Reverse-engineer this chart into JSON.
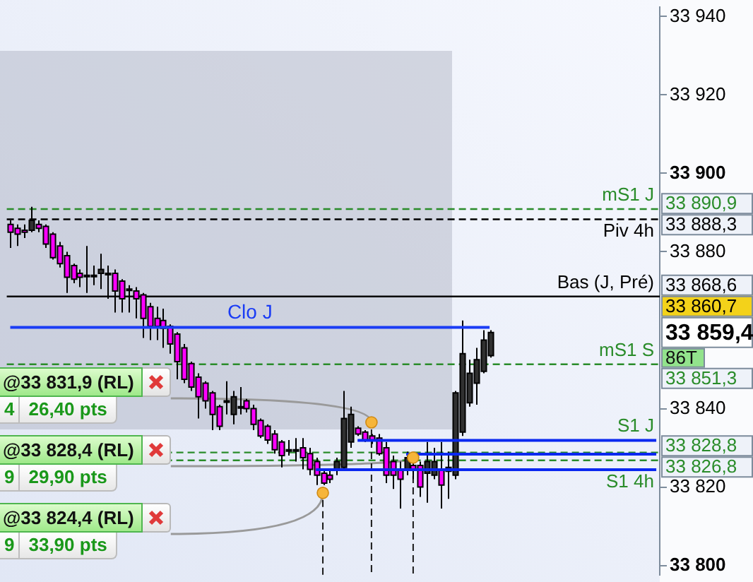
{
  "chart_data": {
    "type": "candlestick",
    "categories": [
      null,
      null,
      null,
      null,
      null,
      null,
      null,
      null,
      null,
      null,
      null,
      null,
      null,
      null,
      null,
      null,
      null,
      null,
      null,
      null,
      null,
      null,
      null,
      null,
      null,
      null,
      null,
      null,
      null,
      null,
      null,
      null,
      null,
      null,
      null,
      null,
      null,
      null,
      null,
      null,
      null,
      null,
      null,
      null,
      null,
      null,
      null,
      null,
      null,
      null,
      null,
      null,
      null,
      null,
      null,
      null,
      null,
      null,
      null,
      null,
      null,
      null,
      null,
      null,
      null,
      null,
      null,
      null,
      null,
      null,
      null,
      null,
      null,
      null,
      null,
      null,
      null,
      null,
      null,
      null,
      null,
      null,
      null,
      null,
      null,
      null,
      null,
      null,
      null,
      null,
      null,
      null,
      null,
      null
    ],
    "ohlc": [
      [
        33887,
        33888,
        33881,
        33885
      ],
      [
        33886,
        33887,
        33881.5,
        33884.5
      ],
      [
        33885.5,
        33887,
        33883.5,
        33885
      ],
      [
        33885.5,
        33891.5,
        33885,
        33888
      ],
      [
        33887,
        33888,
        33885,
        33886
      ],
      [
        33886.5,
        33887,
        33881,
        33882
      ],
      [
        33884.5,
        33885,
        33878,
        33878.5
      ],
      [
        33881.5,
        33882.5,
        33876,
        33877
      ],
      [
        33879,
        33880,
        33869.5,
        33873.5
      ],
      [
        33876.5,
        33877,
        33872,
        33873
      ],
      [
        33874.5,
        33875.5,
        33871,
        33873.5
      ],
      [
        33874,
        33881.5,
        33869.5,
        33874
      ],
      [
        33874,
        33876.5,
        33871.5,
        33874
      ],
      [
        33874.5,
        33879.5,
        33870.5,
        33875.5
      ],
      [
        33874.5,
        33876.5,
        33868,
        33874.5
      ],
      [
        33874.5,
        33875.5,
        33864.5,
        33870
      ],
      [
        33872.5,
        33873,
        33864.5,
        33868
      ],
      [
        33870.5,
        33871.5,
        33864.5,
        33870.5
      ],
      [
        33870,
        33871,
        33863,
        33868
      ],
      [
        33869,
        33869.5,
        33858,
        33863
      ],
      [
        33866,
        33867,
        33857.5,
        33861
      ],
      [
        33863,
        33866,
        33857.5,
        33861
      ],
      [
        33862.5,
        33865.5,
        33855.5,
        33860.5
      ],
      [
        33861,
        33861.5,
        33854,
        33856.5
      ],
      [
        33859,
        33859.5,
        33847.5,
        33852
      ],
      [
        33855.5,
        33856.5,
        33846.5,
        33847.5
      ],
      [
        33851.5,
        33852,
        33844.5,
        33845.5
      ],
      [
        33848,
        33849,
        33837.5,
        33843
      ],
      [
        33846.5,
        33847,
        33840,
        33842
      ],
      [
        33844,
        33844.5,
        33834.5,
        33838.5
      ],
      [
        33840.5,
        33841,
        33834.5,
        33835.5
      ],
      [
        33842,
        33847,
        33838.5,
        33842
      ],
      [
        33838.5,
        33844.5,
        33836,
        33843
      ],
      [
        33840.5,
        33845.5,
        33838.5,
        33840.5
      ],
      [
        33842,
        33842.5,
        33839,
        33840
      ],
      [
        33840,
        33841,
        33834.5,
        33836
      ],
      [
        33837,
        33837.5,
        33832.5,
        33833
      ],
      [
        33835.5,
        33836,
        33831,
        33832
      ],
      [
        33833.5,
        33834.5,
        33828.5,
        33829.5
      ],
      [
        33831.5,
        33832,
        33825,
        33828
      ],
      [
        33829.5,
        33832,
        33828,
        33829.5
      ],
      [
        33829.5,
        33832.5,
        33826.5,
        33829.5
      ],
      [
        33830,
        33832.5,
        33824.5,
        33827.5
      ],
      [
        33828.5,
        33830,
        33823,
        33824.5
      ],
      [
        33826.5,
        33827.5,
        33820.5,
        33823
      ],
      [
        33823.5,
        33824.5,
        33820.5,
        33821
      ],
      [
        33823,
        33824.5,
        33821,
        33822
      ],
      [
        33824.5,
        33827.5,
        33823,
        33826.5
      ],
      [
        33825,
        33844.5,
        33824.5,
        33837.5
      ],
      [
        33831.5,
        33840.5,
        33830,
        33838.5
      ],
      [
        33835,
        33835.5,
        33833,
        33833.5
      ],
      [
        33834,
        33834.5,
        33831.5,
        33832
      ],
      [
        33833,
        33833.5,
        33831,
        33832
      ],
      [
        33832.5,
        33833.5,
        33828,
        33828.5
      ],
      [
        33830,
        33831.5,
        33821,
        33823
      ],
      [
        33826.5,
        33828,
        33819.5,
        33823
      ],
      [
        33824.5,
        33826.5,
        33814.5,
        33822
      ],
      [
        33824.5,
        33829,
        33823,
        33827.5
      ],
      [
        33825.5,
        33826.5,
        33822,
        33824.5
      ],
      [
        33825.5,
        33826.5,
        33817.5,
        33820
      ],
      [
        33823.5,
        33831.5,
        33816,
        33826.5
      ],
      [
        33823,
        33830,
        33822,
        33826.5
      ],
      [
        33824.5,
        33831.5,
        33814.5,
        33820.5
      ],
      [
        33824,
        33829,
        33817,
        33825
      ],
      [
        33823,
        33844.5,
        33822,
        33844
      ],
      [
        33834,
        33862.5,
        33833,
        33854
      ],
      [
        33841.5,
        33852.5,
        33840.5,
        33849
      ],
      [
        33846.5,
        33855.5,
        33841,
        33852.5
      ],
      [
        33849.5,
        33860,
        33849,
        33857.5
      ],
      [
        33853.5,
        33860,
        33853,
        33859.4
      ],
      null,
      null,
      null,
      null,
      null,
      null,
      null,
      null,
      null,
      null,
      null,
      null,
      null,
      null,
      null,
      null,
      null,
      null,
      null,
      null,
      null,
      null,
      null,
      null
    ],
    "colors": [
      "#ff00ff",
      "#ff00ff",
      "#ff00ff",
      "#303030",
      "#ff00ff",
      "#ff00ff",
      "#ff00ff",
      "#ff00ff",
      "#ff00ff",
      "#ff00ff",
      "#ff00ff",
      "#303030",
      "#303030",
      "#303030",
      "#303030",
      "#ff00ff",
      "#ff00ff",
      "#303030",
      "#ff00ff",
      "#ff00ff",
      "#ff00ff",
      "#ff00ff",
      "#ff00ff",
      "#ff00ff",
      "#ff00ff",
      "#ff00ff",
      "#ff00ff",
      "#ff00ff",
      "#ff00ff",
      "#ff00ff",
      "#ff00ff",
      "#303030",
      "#303030",
      "#303030",
      "#ff00ff",
      "#ff00ff",
      "#ff00ff",
      "#ff00ff",
      "#ff00ff",
      "#ff00ff",
      "#303030",
      "#303030",
      "#ff00ff",
      "#ff00ff",
      "#ff00ff",
      "#ff00ff",
      "#ff00ff",
      "#303030",
      "#303030",
      "#303030",
      "#ff00ff",
      "#ff00ff",
      "#ff00ff",
      "#ff00ff",
      "#ff00ff",
      "#ff00ff",
      "#ff00ff",
      "#303030",
      "#ff00ff",
      "#ff00ff",
      "#303030",
      "#303030",
      "#ff00ff",
      "#303030",
      "#303030",
      "#303030",
      "#303030",
      "#303030",
      "#303030",
      "#303030",
      null,
      null,
      null,
      null,
      null,
      null,
      null,
      null,
      null,
      null,
      null,
      null,
      null,
      null,
      null,
      null,
      null,
      null,
      null,
      null,
      null,
      null,
      null,
      null
    ],
    "series": [
      {
        "type": "line",
        "name": "Clo J",
        "color": "#1a3cf5",
        "values": [
          33860.7,
          33860.7,
          33860.7,
          33860.7,
          33860.7,
          33860.7,
          33860.7,
          33860.7,
          33860.7,
          33860.7,
          33860.7,
          33860.7,
          33860.7,
          33860.7,
          33860.7,
          33860.7,
          33860.7,
          33860.7,
          33860.7,
          33860.7,
          33860.7,
          33860.7,
          33860.7,
          33860.7,
          33860.7,
          33860.7,
          33860.7,
          33860.7,
          33860.7,
          33860.7,
          33860.7,
          33860.7,
          33860.7,
          33860.7,
          33860.7,
          33860.7,
          33860.7,
          33860.7,
          33860.7,
          33860.7,
          33860.7,
          33860.7,
          33860.7,
          33860.7,
          33860.7,
          33860.7,
          33860.7,
          33860.7,
          33860.7,
          33860.7,
          33860.7,
          33860.7,
          33860.7,
          33860.7,
          33860.7,
          33860.7,
          33860.7,
          33860.7,
          33860.7,
          33860.7,
          33860.7,
          33860.7,
          33860.7,
          33860.7,
          33860.7,
          33860.7,
          33860.7,
          33860.7,
          33860.7,
          33860.7,
          null,
          null,
          null,
          null,
          null,
          null,
          null,
          null,
          null,
          null,
          null,
          null,
          null,
          null,
          null,
          null,
          null,
          null,
          null,
          null,
          null,
          null,
          null,
          null
        ]
      },
      {
        "type": "line",
        "color": "#0a28f0",
        "values": [
          null,
          null,
          null,
          null,
          null,
          null,
          null,
          null,
          null,
          null,
          null,
          null,
          null,
          null,
          null,
          null,
          null,
          null,
          null,
          null,
          null,
          null,
          null,
          null,
          null,
          null,
          null,
          null,
          null,
          null,
          null,
          null,
          null,
          null,
          null,
          null,
          null,
          null,
          null,
          null,
          null,
          null,
          null,
          null,
          null,
          null,
          null,
          null,
          null,
          null,
          33831.9,
          33831.9,
          33831.9,
          33831.9,
          33831.9,
          33831.9,
          33831.9,
          33831.9,
          33831.9,
          33831.9,
          33831.9,
          33831.9,
          33831.9,
          33831.9,
          33831.9,
          33831.9,
          33831.9,
          33831.9,
          33831.9,
          33831.9,
          33831.9,
          33831.9,
          33831.9,
          33831.9,
          33831.9,
          33831.9,
          33831.9,
          33831.9,
          33831.9,
          33831.9,
          33831.9,
          33831.9,
          33831.9,
          33831.9,
          33831.9,
          33831.9,
          33831.9,
          33831.9,
          33831.9,
          33831.9,
          33831.9,
          33831.9,
          33831.9,
          33831.9
        ]
      },
      {
        "type": "line",
        "color": "#0a28f0",
        "values": [
          null,
          null,
          null,
          null,
          null,
          null,
          null,
          null,
          null,
          null,
          null,
          null,
          null,
          null,
          null,
          null,
          null,
          null,
          null,
          null,
          null,
          null,
          null,
          null,
          null,
          null,
          null,
          null,
          null,
          null,
          null,
          null,
          null,
          null,
          null,
          null,
          null,
          null,
          null,
          null,
          null,
          null,
          null,
          null,
          null,
          null,
          null,
          null,
          null,
          null,
          null,
          null,
          null,
          null,
          null,
          null,
          null,
          33828.4,
          33828.4,
          33828.4,
          33828.4,
          33828.4,
          33828.4,
          33828.4,
          33828.4,
          33828.4,
          33828.4,
          33828.4,
          33828.4,
          33828.4,
          33828.4,
          33828.4,
          33828.4,
          33828.4,
          33828.4,
          33828.4,
          33828.4,
          33828.4,
          33828.4,
          33828.4,
          33828.4,
          33828.4,
          33828.4,
          33828.4,
          33828.4,
          33828.4,
          33828.4,
          33828.4,
          33828.4,
          33828.4,
          33828.4,
          33828.4,
          33828.4,
          33828.4
        ]
      },
      {
        "type": "line",
        "color": "#0a28f0",
        "values": [
          null,
          null,
          null,
          null,
          null,
          null,
          null,
          null,
          null,
          null,
          null,
          null,
          null,
          null,
          null,
          null,
          null,
          null,
          null,
          null,
          null,
          null,
          null,
          null,
          null,
          null,
          null,
          null,
          null,
          null,
          null,
          null,
          null,
          null,
          null,
          null,
          null,
          null,
          null,
          null,
          null,
          null,
          null,
          null,
          33824.4,
          33824.4,
          33824.4,
          33824.4,
          33824.4,
          33824.4,
          33824.4,
          33824.4,
          33824.4,
          33824.4,
          33824.4,
          33824.4,
          33824.4,
          33824.4,
          33824.4,
          33824.4,
          33824.4,
          33824.4,
          33824.4,
          33824.4,
          33824.4,
          33824.4,
          33824.4,
          33824.4,
          33824.4,
          33824.4,
          33824.4,
          33824.4,
          33824.4,
          33824.4,
          33824.4,
          33824.4,
          33824.4,
          33824.4,
          33824.4,
          33824.4,
          33824.4,
          33824.4,
          33824.4,
          33824.4,
          33824.4,
          33824.4,
          33824.4,
          33824.4,
          33824.4,
          33824.4,
          33824.4,
          33824.4,
          33824.4,
          33824.4
        ]
      },
      {
        "type": "lollipop",
        "color": "#f6b53a",
        "line_style": "dashed",
        "values": [
          null,
          null,
          null,
          null,
          null,
          null,
          null,
          null,
          null,
          null,
          null,
          null,
          null,
          null,
          null,
          null,
          null,
          null,
          null,
          null,
          null,
          null,
          null,
          null,
          null,
          null,
          null,
          null,
          null,
          null,
          null,
          null,
          null,
          null,
          null,
          null,
          null,
          null,
          null,
          null,
          null,
          null,
          null,
          null,
          null,
          33818.5,
          null,
          null,
          null,
          null,
          null,
          null,
          33836.5,
          null,
          null,
          null,
          null,
          null,
          33827.5,
          null,
          null,
          null,
          null,
          null,
          null,
          null,
          null,
          null,
          null,
          null,
          null,
          null,
          null,
          null,
          null,
          null,
          null,
          null,
          null,
          null,
          null,
          null,
          null,
          null,
          null,
          null,
          null,
          null,
          null,
          null,
          null,
          null,
          null,
          null
        ]
      }
    ],
    "ref_lines": [
      {
        "axis": "y",
        "value": 33890.9,
        "label": "mS1 J",
        "color": "#2a8c2a",
        "line_style": "dashed"
      },
      {
        "axis": "y",
        "value": 33888.3,
        "label": "Piv 4h",
        "color": "#000000",
        "line_style": "dashed"
      },
      {
        "axis": "y",
        "value": 33868.6,
        "label": "Bas (J, Pré)",
        "color": "#000000"
      },
      {
        "axis": "y",
        "value": 33851.3,
        "label": "mS1 S",
        "color": "#2a8c2a",
        "line_style": "dashed"
      },
      {
        "axis": "y",
        "value": 33828.8,
        "label": "S1 J",
        "color": "#2a8c2a",
        "line_style": "dashed"
      },
      {
        "axis": "y",
        "value": 33826.8,
        "label": "S1 4h",
        "color": "#2a8c2a",
        "line_style": "dashed"
      }
    ],
    "annotations": [
      "33 890,9",
      "33 888,3",
      "33 868,6",
      "33 860,7",
      "33 859,4",
      "33 851,3",
      "33 828,8",
      "33 826,8",
      "86T",
      "@33 831,9 (RL)",
      "4",
      "26,40 pts",
      "@33 828,4 (RL)",
      "9",
      "29,90 pts",
      "@33 824,4 (RL)",
      "9",
      "33,90 pts"
    ],
    "ylim": [
      33797.5,
      33942.5
    ],
    "yticks": [
      {
        "value": 33800,
        "label": "33 800"
      },
      {
        "value": 33820,
        "label": "33 820"
      },
      {
        "value": 33840,
        "label": "33 840"
      },
      {
        "value": 33880,
        "label": "33 880"
      },
      {
        "value": 33900,
        "label": "33 900"
      },
      {
        "value": 33920,
        "label": "33 920"
      },
      {
        "value": 33940,
        "label": "33 940"
      }
    ],
    "tick_labels": "y"
  }
}
